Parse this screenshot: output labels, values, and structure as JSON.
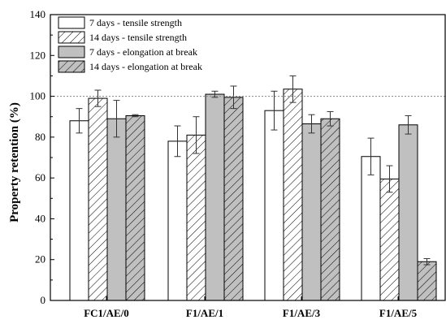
{
  "chart_data": {
    "type": "bar",
    "title": "",
    "xlabel": "",
    "ylabel": "Property retention (%)",
    "ylim": [
      0,
      140
    ],
    "yticks": [
      0,
      20,
      40,
      60,
      80,
      100,
      120,
      140
    ],
    "reference_line": 100,
    "grid": false,
    "legend_position": "top-left",
    "categories": [
      "FC1/AE/0",
      "F1/AE/1",
      "F1/AE/3",
      "F1/AE/5"
    ],
    "series": [
      {
        "name": "7 days - tensile strength",
        "values": [
          88,
          78,
          93,
          70.5
        ],
        "errors": [
          6,
          7.5,
          9.5,
          9
        ],
        "fill": "#ffffff",
        "hatch": false
      },
      {
        "name": "14 days - tensile strength",
        "values": [
          99,
          81,
          103.5,
          59.5
        ],
        "errors": [
          4,
          9,
          6.5,
          6.5
        ],
        "fill": "#ffffff",
        "hatch": true
      },
      {
        "name": "7 days - elongation at break",
        "values": [
          89,
          101,
          86.5,
          86
        ],
        "errors": [
          9,
          1.5,
          4.5,
          4.5
        ],
        "fill": "#c0c0c0",
        "hatch": false
      },
      {
        "name": "14 days - elongation at break",
        "values": [
          90.5,
          99.5,
          89,
          19
        ],
        "errors": [
          0.5,
          5.5,
          3.5,
          1.5
        ],
        "fill": "#c0c0c0",
        "hatch": true
      }
    ]
  }
}
